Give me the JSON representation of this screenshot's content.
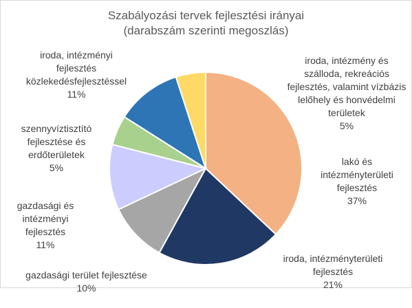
{
  "colors": {
    "title": "#595959",
    "label": "#404040"
  },
  "chart_data": {
    "type": "pie",
    "title_line1": "Szabályozási tervek fejlesztési irányai",
    "title_line2": "(darabszám szerinti megoszlás)",
    "slices": [
      {
        "label": "lakó és intézményterületi fejlesztés",
        "value": 37,
        "pct_label": "37%",
        "color": "#F4B183"
      },
      {
        "label": "iroda, intézményterületi fejlesztés",
        "value": 21,
        "pct_label": "21%",
        "color": "#203864"
      },
      {
        "label": "gazdasági terület fejlesztése",
        "value": 10,
        "pct_label": "10%",
        "color": "#A6A6A6"
      },
      {
        "label": "gazdasági és intézményi fejlesztés",
        "value": 11,
        "pct_label": "11%",
        "color": "#CCCCFF"
      },
      {
        "label": "szennyvíztisztító fejlesztése és erdőterületek",
        "value": 5,
        "pct_label": "5%",
        "color": "#A9D18E"
      },
      {
        "label": "iroda, intézményi fejlesztés közlekedésfejlesztéssel",
        "value": 11,
        "pct_label": "11%",
        "color": "#2E75B6"
      },
      {
        "label": "iroda, intézmény és szálloda, rekreációs fejlesztés, valamint vízbázis lelőhely és honvédelmi területek",
        "value": 5,
        "pct_label": "5%",
        "color": "#FFD966"
      }
    ],
    "start_angle_deg": 0,
    "direction": "clockwise",
    "legend": "none",
    "data_labels": "outside with leader text"
  }
}
